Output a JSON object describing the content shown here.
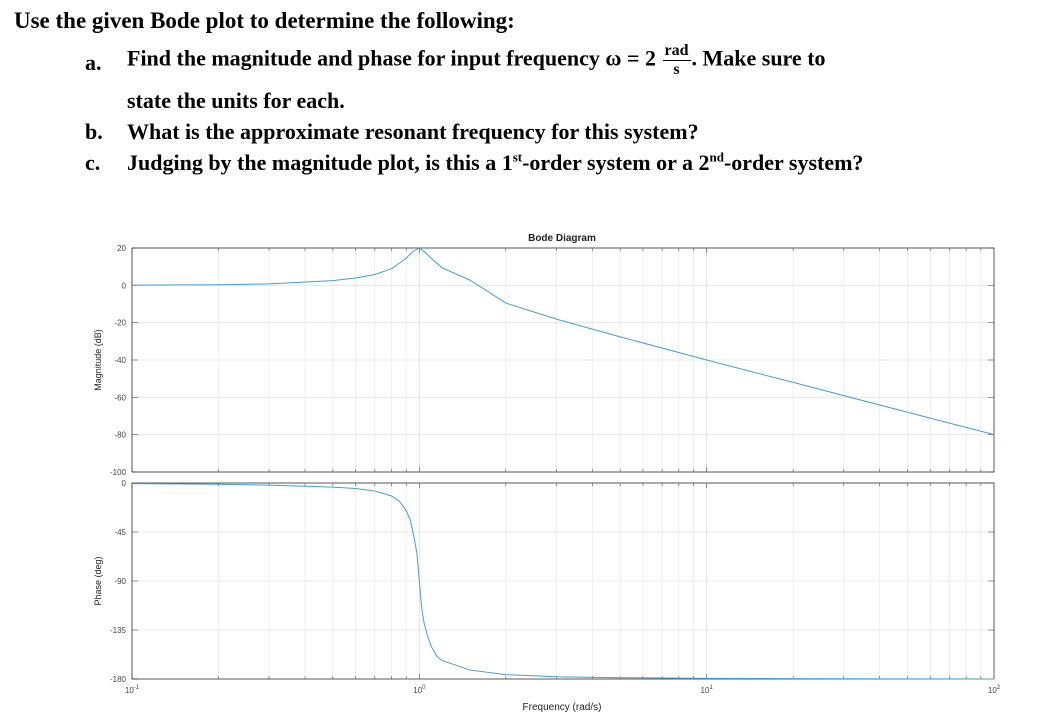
{
  "question": {
    "intro": "Use the given Bode plot to determine the following:",
    "items": [
      {
        "letter": "a.",
        "text_before": "Find the magnitude and phase for input frequency ω = 2 ",
        "frac_num": "rad",
        "frac_den": "s",
        "text_after": ". Make sure to"
      },
      {
        "letter": "",
        "text": "state the units for each."
      },
      {
        "letter": "b.",
        "text": "What is the approximate resonant frequency for this system?"
      },
      {
        "letter": "c.",
        "text_before": "Judging by the magnitude plot, is this a 1",
        "sup1": "st",
        "text_mid": "-order system or a 2",
        "sup2": "nd",
        "text_after": "-order system?"
      }
    ]
  },
  "chart_data": {
    "type": "line",
    "title": "Bode Diagram",
    "xlabel": "Frequency (rad/s)",
    "xscale": "log",
    "xlim": [
      0.1,
      100
    ],
    "x_ticks": [
      "10^-1",
      "10^0",
      "10^1",
      "10^2"
    ],
    "grid": true,
    "line_color": "#4a9bd0",
    "subplots": [
      {
        "name": "magnitude",
        "ylabel": "Magnitude (dB)",
        "ylim": [
          -100,
          20
        ],
        "y_ticks": [
          20,
          0,
          -20,
          -40,
          -60,
          -80,
          -100
        ],
        "x": [
          0.1,
          0.2,
          0.3,
          0.5,
          0.6,
          0.7,
          0.8,
          0.9,
          0.95,
          1.0,
          1.05,
          1.1,
          1.2,
          1.5,
          2,
          3,
          5,
          10,
          20,
          50,
          100
        ],
        "y": [
          0.1,
          0.3,
          0.8,
          2.5,
          3.9,
          5.8,
          8.9,
          14.5,
          18.2,
          20,
          17.5,
          14.5,
          9.4,
          2.8,
          -9.5,
          -18.1,
          -27.6,
          -40,
          -52,
          -68,
          -80
        ]
      },
      {
        "name": "phase",
        "ylabel": "Phase (deg)",
        "ylim": [
          -180,
          0
        ],
        "y_ticks": [
          0,
          -45,
          -90,
          -135,
          -180
        ],
        "x": [
          0.1,
          0.2,
          0.3,
          0.5,
          0.6,
          0.7,
          0.8,
          0.85,
          0.9,
          0.93,
          0.96,
          0.98,
          1.0,
          1.02,
          1.04,
          1.07,
          1.1,
          1.15,
          1.2,
          1.5,
          2,
          3,
          5,
          10,
          20,
          50,
          100
        ],
        "y": [
          -0.6,
          -1.2,
          -1.9,
          -3.8,
          -5.1,
          -7.4,
          -11.9,
          -16.4,
          -25.3,
          -34,
          -51,
          -64,
          -90,
          -116,
          -129,
          -141,
          -150,
          -159,
          -163,
          -171.8,
          -176,
          -177.9,
          -178.8,
          -179.4,
          -179.7,
          -179.9,
          -180
        ]
      }
    ]
  }
}
